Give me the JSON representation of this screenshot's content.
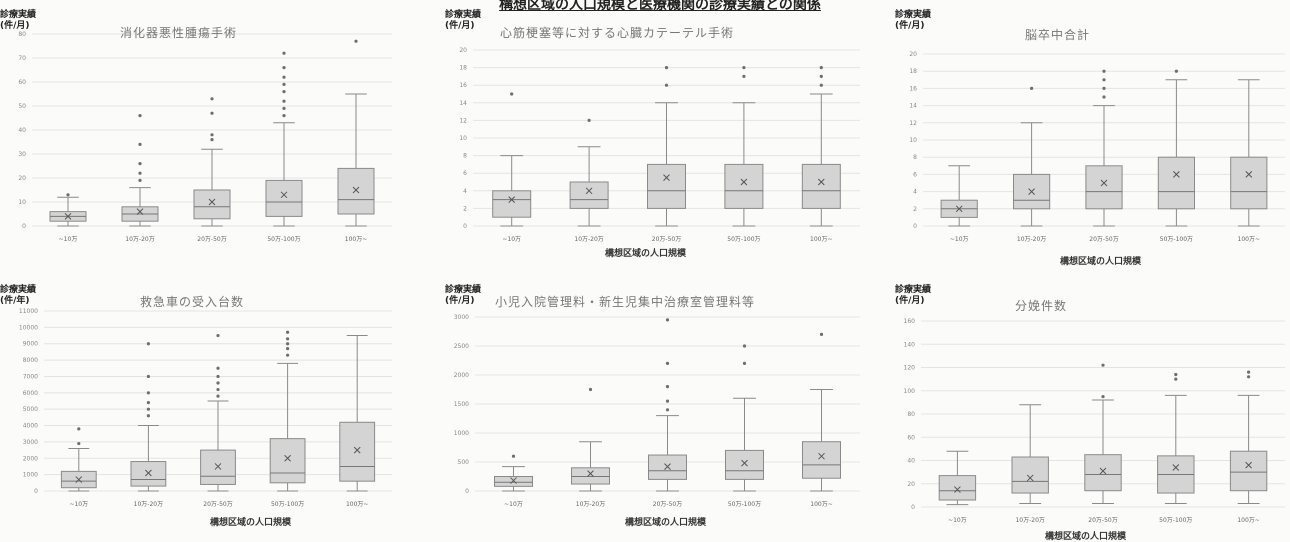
{
  "page": {
    "title": "構想区域の人口規模と医療機関の診療実績との関係"
  },
  "colors": {
    "box_fill": "#d4d4d4",
    "box_stroke": "#8a8a8a",
    "median": "#777777",
    "mean_marker": "#555555",
    "outlier": "#6f6f6f",
    "grid": "#e4e4e4",
    "background": "#fbfbfa"
  },
  "chart_data": [
    {
      "type": "box",
      "title": "消化器悪性腫瘍手術",
      "ylabel": [
        "診療実績",
        "(件/月)"
      ],
      "xlabel": "",
      "ylim": [
        0,
        80
      ],
      "yticks": [
        0,
        10,
        20,
        30,
        40,
        50,
        60,
        70,
        80
      ],
      "grid": true,
      "categories": [
        "~10万",
        "10万-20万",
        "20万-50万",
        "50万-100万",
        "100万~"
      ],
      "boxes": [
        {
          "min": 0,
          "q1": 2,
          "median": 4,
          "q3": 6,
          "max": 12,
          "mean": 4,
          "outliers": [
            13
          ]
        },
        {
          "min": 0,
          "q1": 2,
          "median": 5,
          "q3": 8,
          "max": 16,
          "mean": 6,
          "outliers": [
            19,
            22,
            26,
            34,
            46
          ]
        },
        {
          "min": 0,
          "q1": 3,
          "median": 8,
          "q3": 15,
          "max": 32,
          "mean": 10,
          "outliers": [
            36,
            38,
            47,
            53
          ]
        },
        {
          "min": 0,
          "q1": 4,
          "median": 10,
          "q3": 19,
          "max": 43,
          "mean": 13,
          "outliers": [
            46,
            49,
            52,
            56,
            59,
            62,
            66,
            72
          ]
        },
        {
          "min": 0,
          "q1": 5,
          "median": 11,
          "q3": 24,
          "max": 55,
          "mean": 15,
          "outliers": [
            77
          ]
        }
      ]
    },
    {
      "type": "box",
      "title": "心筋梗塞等に対する心臓カテーテル手術",
      "ylabel": [
        "診療実績",
        "(件/月)"
      ],
      "xlabel": "構想区域の人口規模",
      "ylim": [
        0,
        20
      ],
      "yticks": [
        0,
        2,
        4,
        6,
        8,
        10,
        12,
        14,
        16,
        18,
        20
      ],
      "grid": true,
      "categories": [
        "~10万",
        "10万-20万",
        "20万-50万",
        "50万-100万",
        "100万~"
      ],
      "boxes": [
        {
          "min": 0,
          "q1": 1,
          "median": 3,
          "q3": 4,
          "max": 8,
          "mean": 3,
          "outliers": [
            15
          ]
        },
        {
          "min": 0,
          "q1": 2,
          "median": 3,
          "q3": 5,
          "max": 9,
          "mean": 4,
          "outliers": [
            12
          ]
        },
        {
          "min": 0,
          "q1": 2,
          "median": 4,
          "q3": 7,
          "max": 14,
          "mean": 5.5,
          "outliers": [
            16,
            18
          ]
        },
        {
          "min": 0,
          "q1": 2,
          "median": 4,
          "q3": 7,
          "max": 14,
          "mean": 5,
          "outliers": [
            17,
            18
          ]
        },
        {
          "min": 0,
          "q1": 2,
          "median": 4,
          "q3": 7,
          "max": 15,
          "mean": 5,
          "outliers": [
            16,
            17,
            18
          ]
        }
      ]
    },
    {
      "type": "box",
      "title": "脳卒中合計",
      "ylabel": [
        "診療実績",
        "(件/月)"
      ],
      "xlabel": "構想区域の人口規模",
      "ylim": [
        0,
        20
      ],
      "yticks": [
        0,
        2,
        4,
        6,
        8,
        10,
        12,
        14,
        16,
        18,
        20
      ],
      "grid": true,
      "categories": [
        "~10万",
        "10万-20万",
        "20万-50万",
        "50万-100万",
        "100万~"
      ],
      "boxes": [
        {
          "min": 0,
          "q1": 1,
          "median": 2,
          "q3": 3,
          "max": 7,
          "mean": 2,
          "outliers": []
        },
        {
          "min": 0,
          "q1": 2,
          "median": 3,
          "q3": 6,
          "max": 12,
          "mean": 4,
          "outliers": [
            16
          ]
        },
        {
          "min": 0,
          "q1": 2,
          "median": 4,
          "q3": 7,
          "max": 14,
          "mean": 5,
          "outliers": [
            15,
            16,
            17,
            18
          ]
        },
        {
          "min": 0,
          "q1": 2,
          "median": 4,
          "q3": 8,
          "max": 17,
          "mean": 6,
          "outliers": [
            18
          ]
        },
        {
          "min": 0,
          "q1": 2,
          "median": 4,
          "q3": 8,
          "max": 17,
          "mean": 6,
          "outliers": []
        }
      ]
    },
    {
      "type": "box",
      "title": "救急車の受入台数",
      "ylabel": [
        "診療実績",
        "(件/年)"
      ],
      "xlabel": "構想区域の人口規模",
      "ylim": [
        0,
        11000
      ],
      "yticks": [
        0,
        1000,
        2000,
        3000,
        4000,
        5000,
        6000,
        7000,
        8000,
        9000,
        10000,
        11000
      ],
      "grid": true,
      "categories": [
        "~10万",
        "10万-20万",
        "20万-50万",
        "50万-100万",
        "100万~"
      ],
      "boxes": [
        {
          "min": 0,
          "q1": 200,
          "median": 600,
          "q3": 1200,
          "max": 2600,
          "mean": 700,
          "outliers": [
            2900,
            3800
          ]
        },
        {
          "min": 0,
          "q1": 300,
          "median": 700,
          "q3": 1800,
          "max": 4000,
          "mean": 1100,
          "outliers": [
            4600,
            5000,
            5400,
            6000,
            7000,
            9000
          ]
        },
        {
          "min": 0,
          "q1": 400,
          "median": 900,
          "q3": 2500,
          "max": 5500,
          "mean": 1500,
          "outliers": [
            5800,
            6200,
            6600,
            7000,
            7500,
            9500
          ]
        },
        {
          "min": 0,
          "q1": 500,
          "median": 1100,
          "q3": 3200,
          "max": 7800,
          "mean": 2000,
          "outliers": [
            8300,
            8700,
            9000,
            9300,
            9700
          ]
        },
        {
          "min": 0,
          "q1": 600,
          "median": 1500,
          "q3": 4200,
          "max": 9500,
          "mean": 2500,
          "outliers": []
        }
      ]
    },
    {
      "type": "box",
      "title": "小児入院管理料・新生児集中治療室管理料等",
      "ylabel": [
        "診療実績",
        "(件/月)"
      ],
      "xlabel": "構想区域の人口規模",
      "ylim": [
        0,
        3000
      ],
      "yticks": [
        0,
        500,
        1000,
        1500,
        2000,
        2500,
        3000
      ],
      "grid": true,
      "categories": [
        "~10万",
        "10万-20万",
        "20万-50万",
        "50万-100万",
        "100万~"
      ],
      "boxes": [
        {
          "min": 0,
          "q1": 80,
          "median": 150,
          "q3": 250,
          "max": 420,
          "mean": 180,
          "outliers": [
            600
          ]
        },
        {
          "min": 0,
          "q1": 120,
          "median": 250,
          "q3": 400,
          "max": 850,
          "mean": 300,
          "outliers": [
            1750
          ]
        },
        {
          "min": 0,
          "q1": 200,
          "median": 350,
          "q3": 620,
          "max": 1300,
          "mean": 420,
          "outliers": [
            1400,
            1550,
            1800,
            2200,
            2950
          ]
        },
        {
          "min": 0,
          "q1": 200,
          "median": 350,
          "q3": 700,
          "max": 1600,
          "mean": 480,
          "outliers": [
            2200,
            2500
          ]
        },
        {
          "min": 0,
          "q1": 220,
          "median": 450,
          "q3": 850,
          "max": 1750,
          "mean": 600,
          "outliers": [
            2700
          ]
        }
      ]
    },
    {
      "type": "box",
      "title": "分娩件数",
      "ylabel": [
        "診療実績",
        "(件/月)"
      ],
      "xlabel": "構想区域の人口規模",
      "ylim": [
        0,
        160
      ],
      "yticks": [
        0,
        20,
        40,
        60,
        80,
        100,
        120,
        140,
        160
      ],
      "grid": true,
      "categories": [
        "~10万",
        "10万-20万",
        "20万-50万",
        "50万-100万",
        "100万~"
      ],
      "boxes": [
        {
          "min": 2,
          "q1": 6,
          "median": 14,
          "q3": 27,
          "max": 48,
          "mean": 15,
          "outliers": []
        },
        {
          "min": 3,
          "q1": 12,
          "median": 22,
          "q3": 43,
          "max": 88,
          "mean": 25,
          "outliers": []
        },
        {
          "min": 3,
          "q1": 14,
          "median": 28,
          "q3": 45,
          "max": 92,
          "mean": 31,
          "outliers": [
            95,
            122
          ]
        },
        {
          "min": 3,
          "q1": 12,
          "median": 28,
          "q3": 44,
          "max": 96,
          "mean": 34,
          "outliers": [
            110,
            114
          ]
        },
        {
          "min": 3,
          "q1": 14,
          "median": 30,
          "q3": 48,
          "max": 96,
          "mean": 36,
          "outliers": [
            112,
            116
          ]
        }
      ]
    }
  ]
}
